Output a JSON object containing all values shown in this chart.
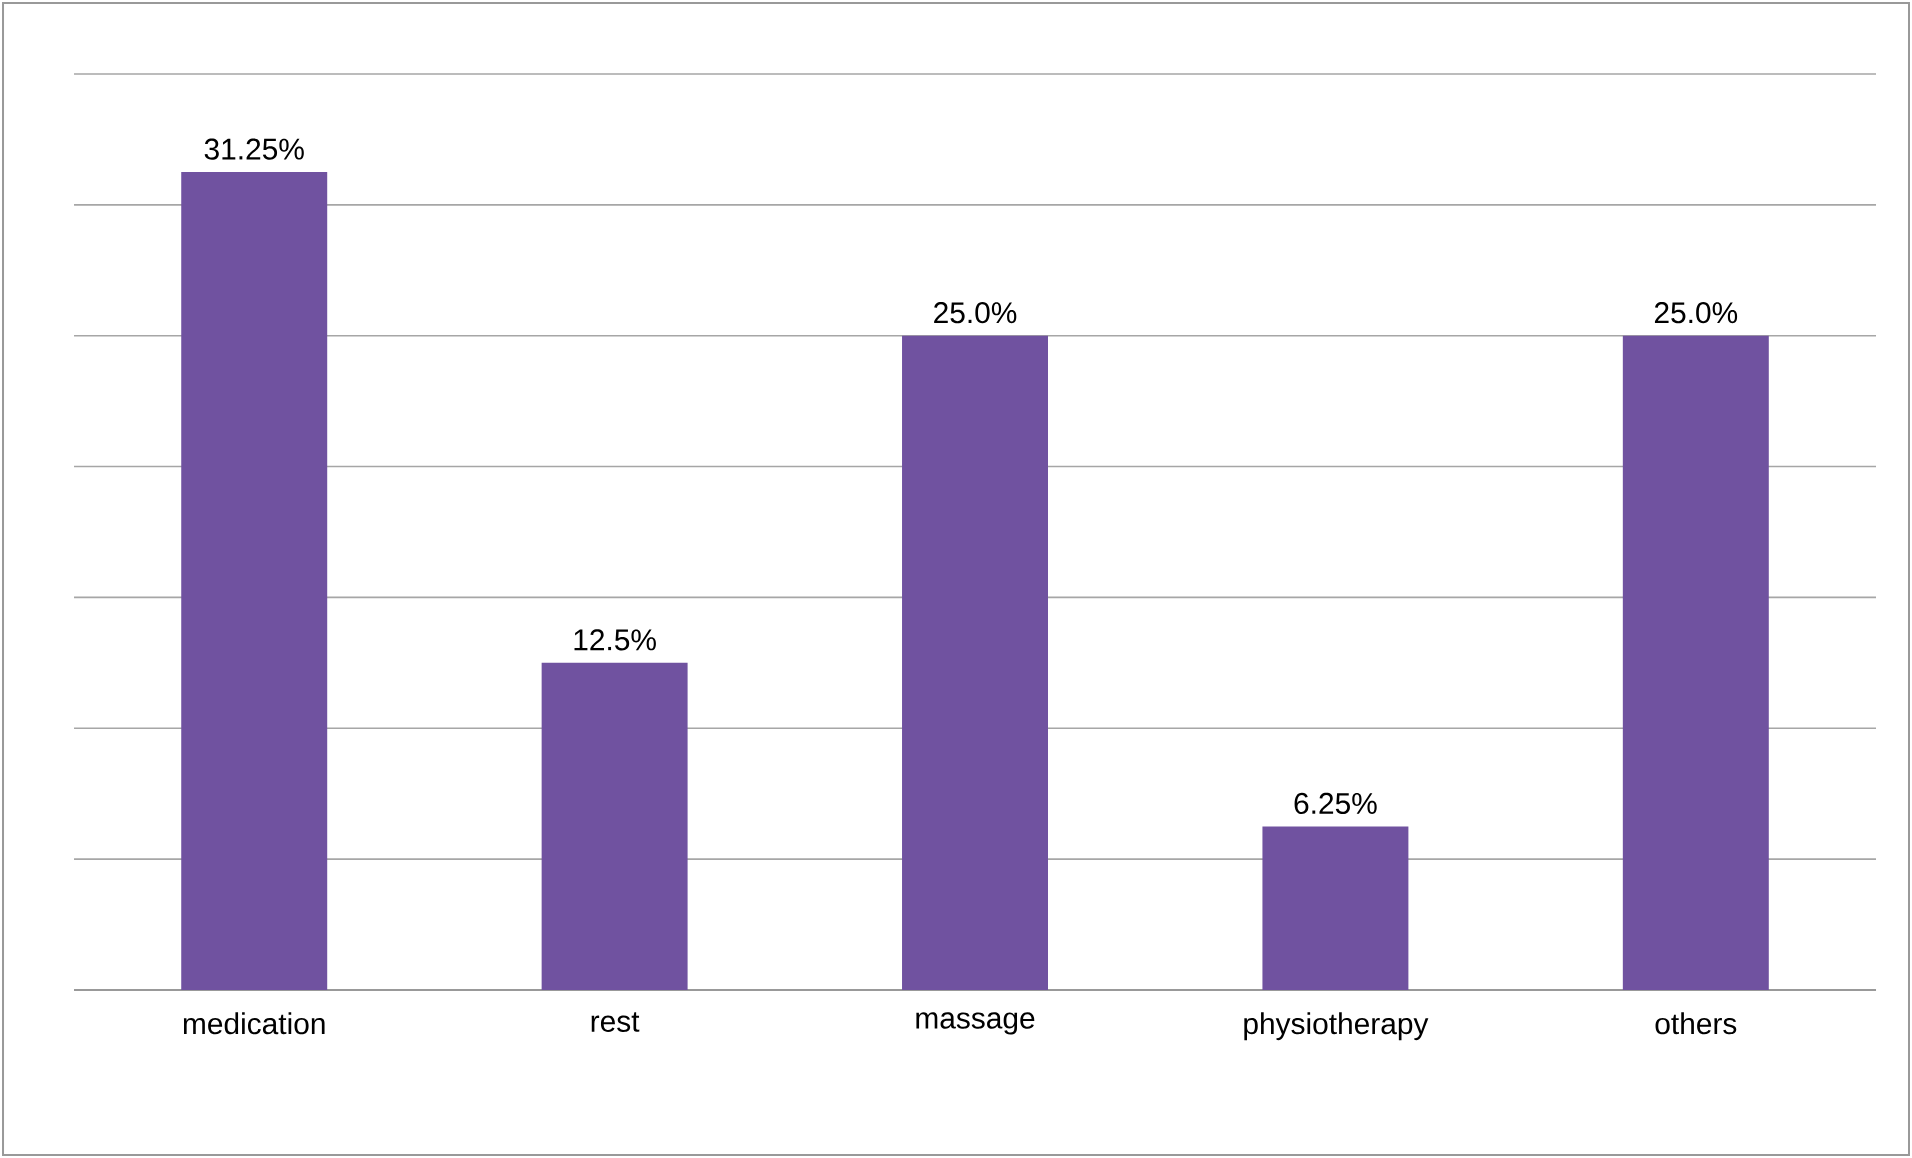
{
  "chart_data": {
    "type": "bar",
    "categories": [
      "medication",
      "rest",
      "massage",
      "physiotherapy",
      "others"
    ],
    "values": [
      31.25,
      12.5,
      25.0,
      6.25,
      25.0
    ],
    "value_labels": [
      "31.25%",
      "12.5%",
      "25.0%",
      "6.25%",
      "25.0%"
    ],
    "color": "#7052a0",
    "ylim": [
      0,
      35
    ],
    "yticks": [
      {
        "value": 0,
        "label": null
      },
      {
        "value": 5,
        "label": null
      },
      {
        "value": 10,
        "label": null
      },
      {
        "value": 15,
        "label": null
      },
      {
        "value": 20,
        "label": null
      },
      {
        "value": 25,
        "label": null
      },
      {
        "value": 30,
        "label": null
      },
      {
        "value": 35,
        "label": null
      }
    ],
    "grid": "y",
    "tick_labels": "x"
  }
}
